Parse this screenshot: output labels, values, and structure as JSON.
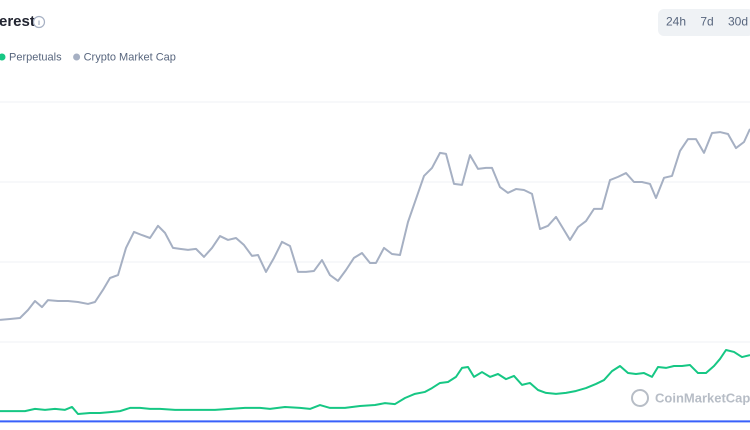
{
  "header": {
    "title": "erest",
    "buttons": [
      "24h",
      "7d",
      "30d"
    ]
  },
  "watermark": "CoinMarketCap",
  "chart_data": {
    "type": "line",
    "xlim": [
      0,
      750
    ],
    "ylim": [
      0,
      100
    ],
    "yticks": [
      0,
      25,
      50,
      75,
      100
    ],
    "grid": true,
    "series": [
      {
        "name": "Perpetuals",
        "color": "#16c784",
        "x": [
          0,
          15,
          25,
          35,
          45,
          55,
          65,
          72,
          78,
          90,
          100,
          110,
          120,
          130,
          140,
          150,
          160,
          175,
          185,
          200,
          215,
          230,
          245,
          260,
          270,
          285,
          300,
          310,
          320,
          330,
          345,
          360,
          375,
          385,
          395,
          405,
          415,
          425,
          432,
          440,
          448,
          456,
          462,
          468,
          474,
          482,
          490,
          498,
          506,
          514,
          522,
          530,
          538,
          546,
          556,
          566,
          576,
          586,
          596,
          604,
          612,
          620,
          628,
          636,
          644,
          652,
          658,
          666,
          674,
          682,
          690,
          698,
          706,
          714,
          720,
          726,
          734,
          742,
          750
        ],
        "values": [
          3.4,
          3.4,
          3.4,
          4.1,
          3.8,
          4.1,
          3.8,
          4.7,
          2.5,
          2.8,
          2.8,
          3.1,
          3.4,
          4.4,
          4.4,
          4.1,
          4.1,
          3.8,
          3.8,
          3.8,
          3.8,
          4.1,
          4.4,
          4.4,
          4.1,
          4.7,
          4.4,
          4.1,
          5.3,
          4.4,
          4.4,
          5.0,
          5.3,
          5.9,
          5.6,
          7.5,
          8.8,
          9.4,
          10.6,
          12.2,
          12.5,
          14.1,
          16.9,
          17.2,
          14.1,
          15.6,
          14.1,
          15.0,
          13.4,
          14.4,
          11.6,
          12.2,
          10.0,
          9.1,
          8.8,
          9.1,
          9.7,
          10.6,
          11.9,
          13.1,
          15.9,
          17.5,
          15.3,
          15.0,
          15.3,
          14.1,
          17.2,
          16.9,
          17.5,
          17.5,
          17.8,
          15.3,
          15.3,
          17.5,
          19.7,
          22.5,
          21.9,
          20.3,
          20.9
        ]
      },
      {
        "name": "Crypto Market Cap",
        "color": "#a6b0c3",
        "x": [
          0,
          10,
          20,
          28,
          35,
          42,
          48,
          58,
          68,
          78,
          88,
          95,
          103,
          110,
          118,
          126,
          134,
          142,
          150,
          158,
          165,
          173,
          180,
          188,
          196,
          204,
          212,
          220,
          228,
          236,
          244,
          252,
          258,
          266,
          274,
          282,
          290,
          298,
          306,
          314,
          322,
          330,
          338,
          346,
          354,
          362,
          370,
          376,
          384,
          392,
          400,
          408,
          416,
          424,
          432,
          440,
          446,
          454,
          462,
          470,
          478,
          486,
          492,
          500,
          508,
          516,
          524,
          532,
          540,
          548,
          556,
          564,
          570,
          578,
          586,
          594,
          602,
          610,
          618,
          626,
          634,
          642,
          650,
          656,
          664,
          672,
          680,
          688,
          696,
          704,
          712,
          720,
          728,
          736,
          744,
          750
        ],
        "values": [
          31.9,
          32.2,
          32.5,
          35.0,
          37.8,
          35.9,
          38.1,
          37.8,
          37.8,
          37.5,
          36.9,
          37.5,
          41.3,
          45.0,
          45.9,
          54.4,
          59.4,
          58.4,
          57.5,
          61.3,
          59.1,
          54.4,
          54.1,
          53.8,
          54.1,
          51.6,
          54.4,
          58.1,
          56.9,
          57.5,
          55.3,
          51.9,
          52.2,
          46.9,
          51.3,
          56.3,
          55.0,
          46.9,
          46.9,
          47.2,
          50.6,
          45.9,
          44.1,
          47.5,
          51.3,
          52.8,
          49.7,
          49.7,
          54.4,
          52.5,
          52.2,
          62.5,
          69.7,
          76.9,
          79.4,
          84.1,
          83.8,
          74.4,
          74.1,
          83.4,
          79.1,
          79.4,
          79.4,
          73.4,
          71.6,
          72.8,
          72.5,
          71.3,
          60.3,
          61.3,
          64.1,
          60.0,
          56.9,
          60.9,
          62.8,
          66.6,
          66.6,
          75.6,
          76.6,
          77.8,
          75.0,
          75.0,
          74.4,
          70.0,
          76.3,
          76.9,
          84.7,
          88.4,
          88.4,
          84.1,
          90.3,
          90.6,
          90.0,
          85.6,
          87.5,
          91.6
        ]
      },
      {
        "color": "#3861fb",
        "x": [
          0,
          750
        ],
        "values": [
          0.2,
          0.2
        ]
      }
    ]
  }
}
